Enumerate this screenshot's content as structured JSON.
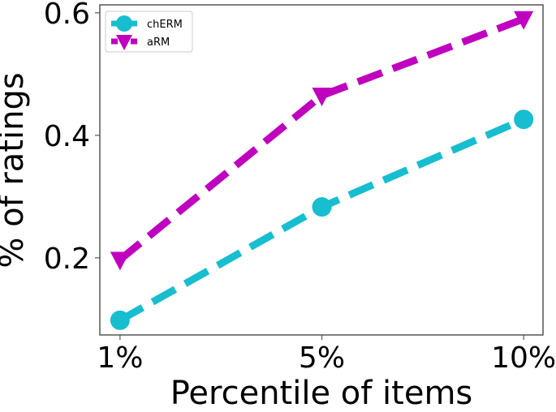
{
  "chart_data": {
    "type": "line",
    "title": "",
    "xlabel": "Percentile of items",
    "ylabel": "% of ratings",
    "categories": [
      "1%",
      "5%",
      "10%"
    ],
    "yticks": [
      0.2,
      0.4,
      0.6
    ],
    "ytick_labels": [
      "0.2",
      "0.4",
      "0.6"
    ],
    "ylim": [
      0.074,
      0.613
    ],
    "grid": false,
    "legend_position": "top-left",
    "series": [
      {
        "name": "chERM",
        "color": "#17becf",
        "marker": "circle",
        "values": [
          0.098,
          0.283,
          0.426
        ]
      },
      {
        "name": "aRM",
        "color": "#bf00bf",
        "marker": "triangle-down",
        "values": [
          0.197,
          0.465,
          0.59
        ]
      }
    ]
  }
}
